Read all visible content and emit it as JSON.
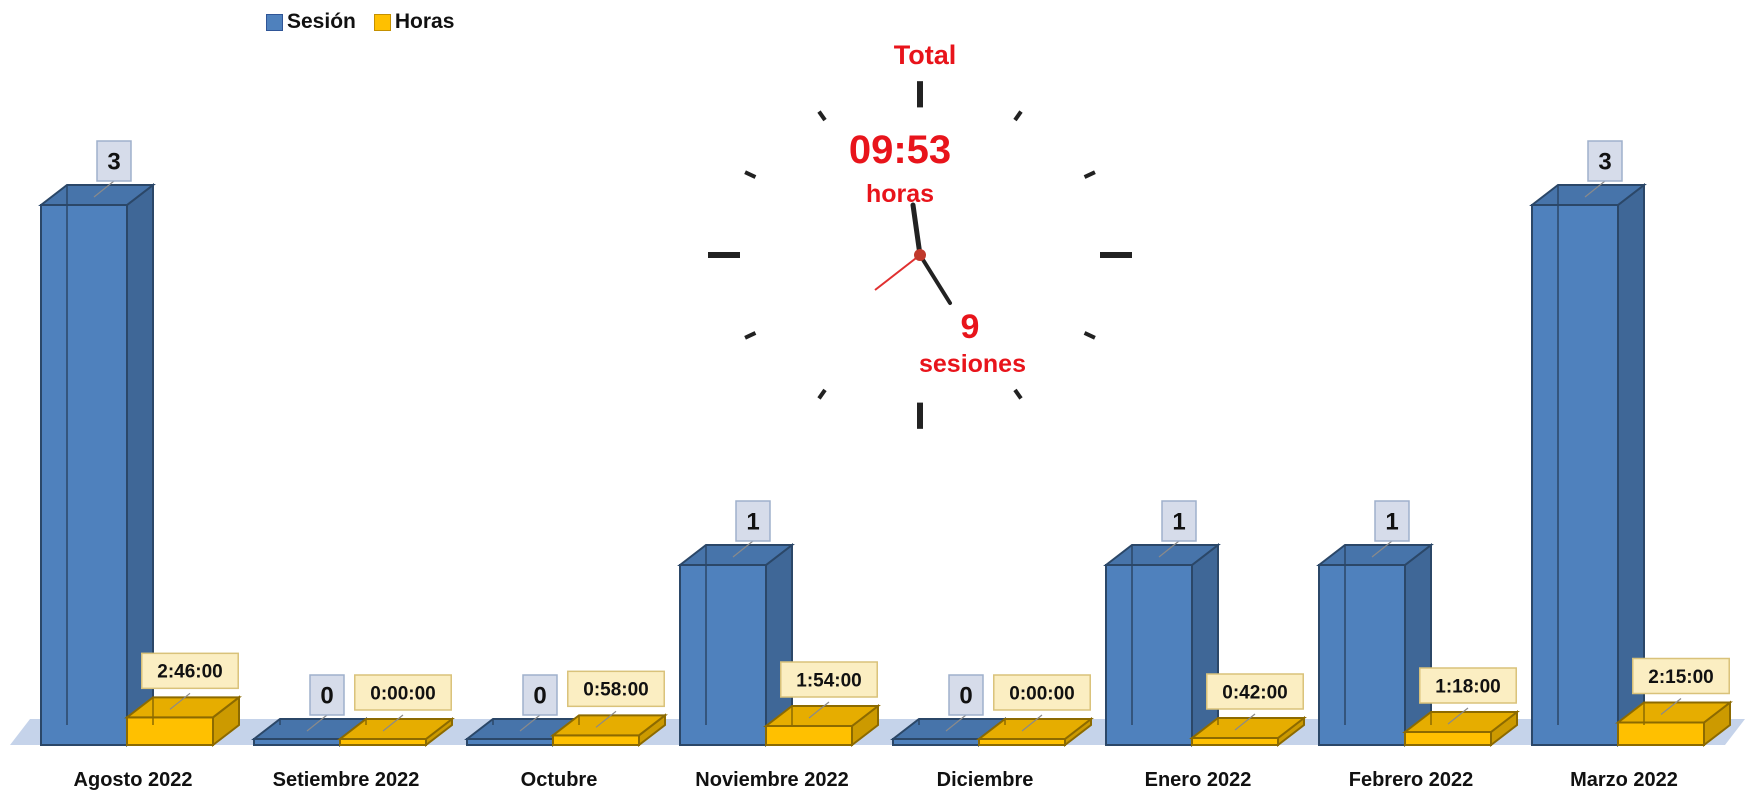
{
  "chart_data": {
    "type": "bar",
    "categories": [
      "Agosto 2022",
      "Setiembre 2022",
      "Octubre",
      "Noviembre 2022",
      "Diciembre",
      "Enero 2022",
      "Febrero 2022",
      "Marzo 2022"
    ],
    "series": [
      {
        "name": "Sesión",
        "values": [
          3,
          0,
          0,
          1,
          0,
          1,
          1,
          3
        ],
        "labels": [
          "3",
          "0",
          "0",
          "1",
          "0",
          "1",
          "1",
          "3"
        ],
        "color": "#4f81bd"
      },
      {
        "name": "Horas",
        "values": [
          2.767,
          0,
          0.967,
          1.9,
          0,
          0.7,
          1.3,
          2.25
        ],
        "labels": [
          "2:46:00",
          "0:00:00",
          "0:58:00",
          "1:54:00",
          "0:00:00",
          "0:42:00",
          "1:18:00",
          "2:15:00"
        ],
        "color": "#ffc000"
      }
    ],
    "legend_position": "top-left",
    "grid": false
  },
  "summary": {
    "title": "Total",
    "hours_value": "09:53",
    "hours_label": "horas",
    "sessions_value": "9",
    "sessions_label": "sesiones"
  }
}
